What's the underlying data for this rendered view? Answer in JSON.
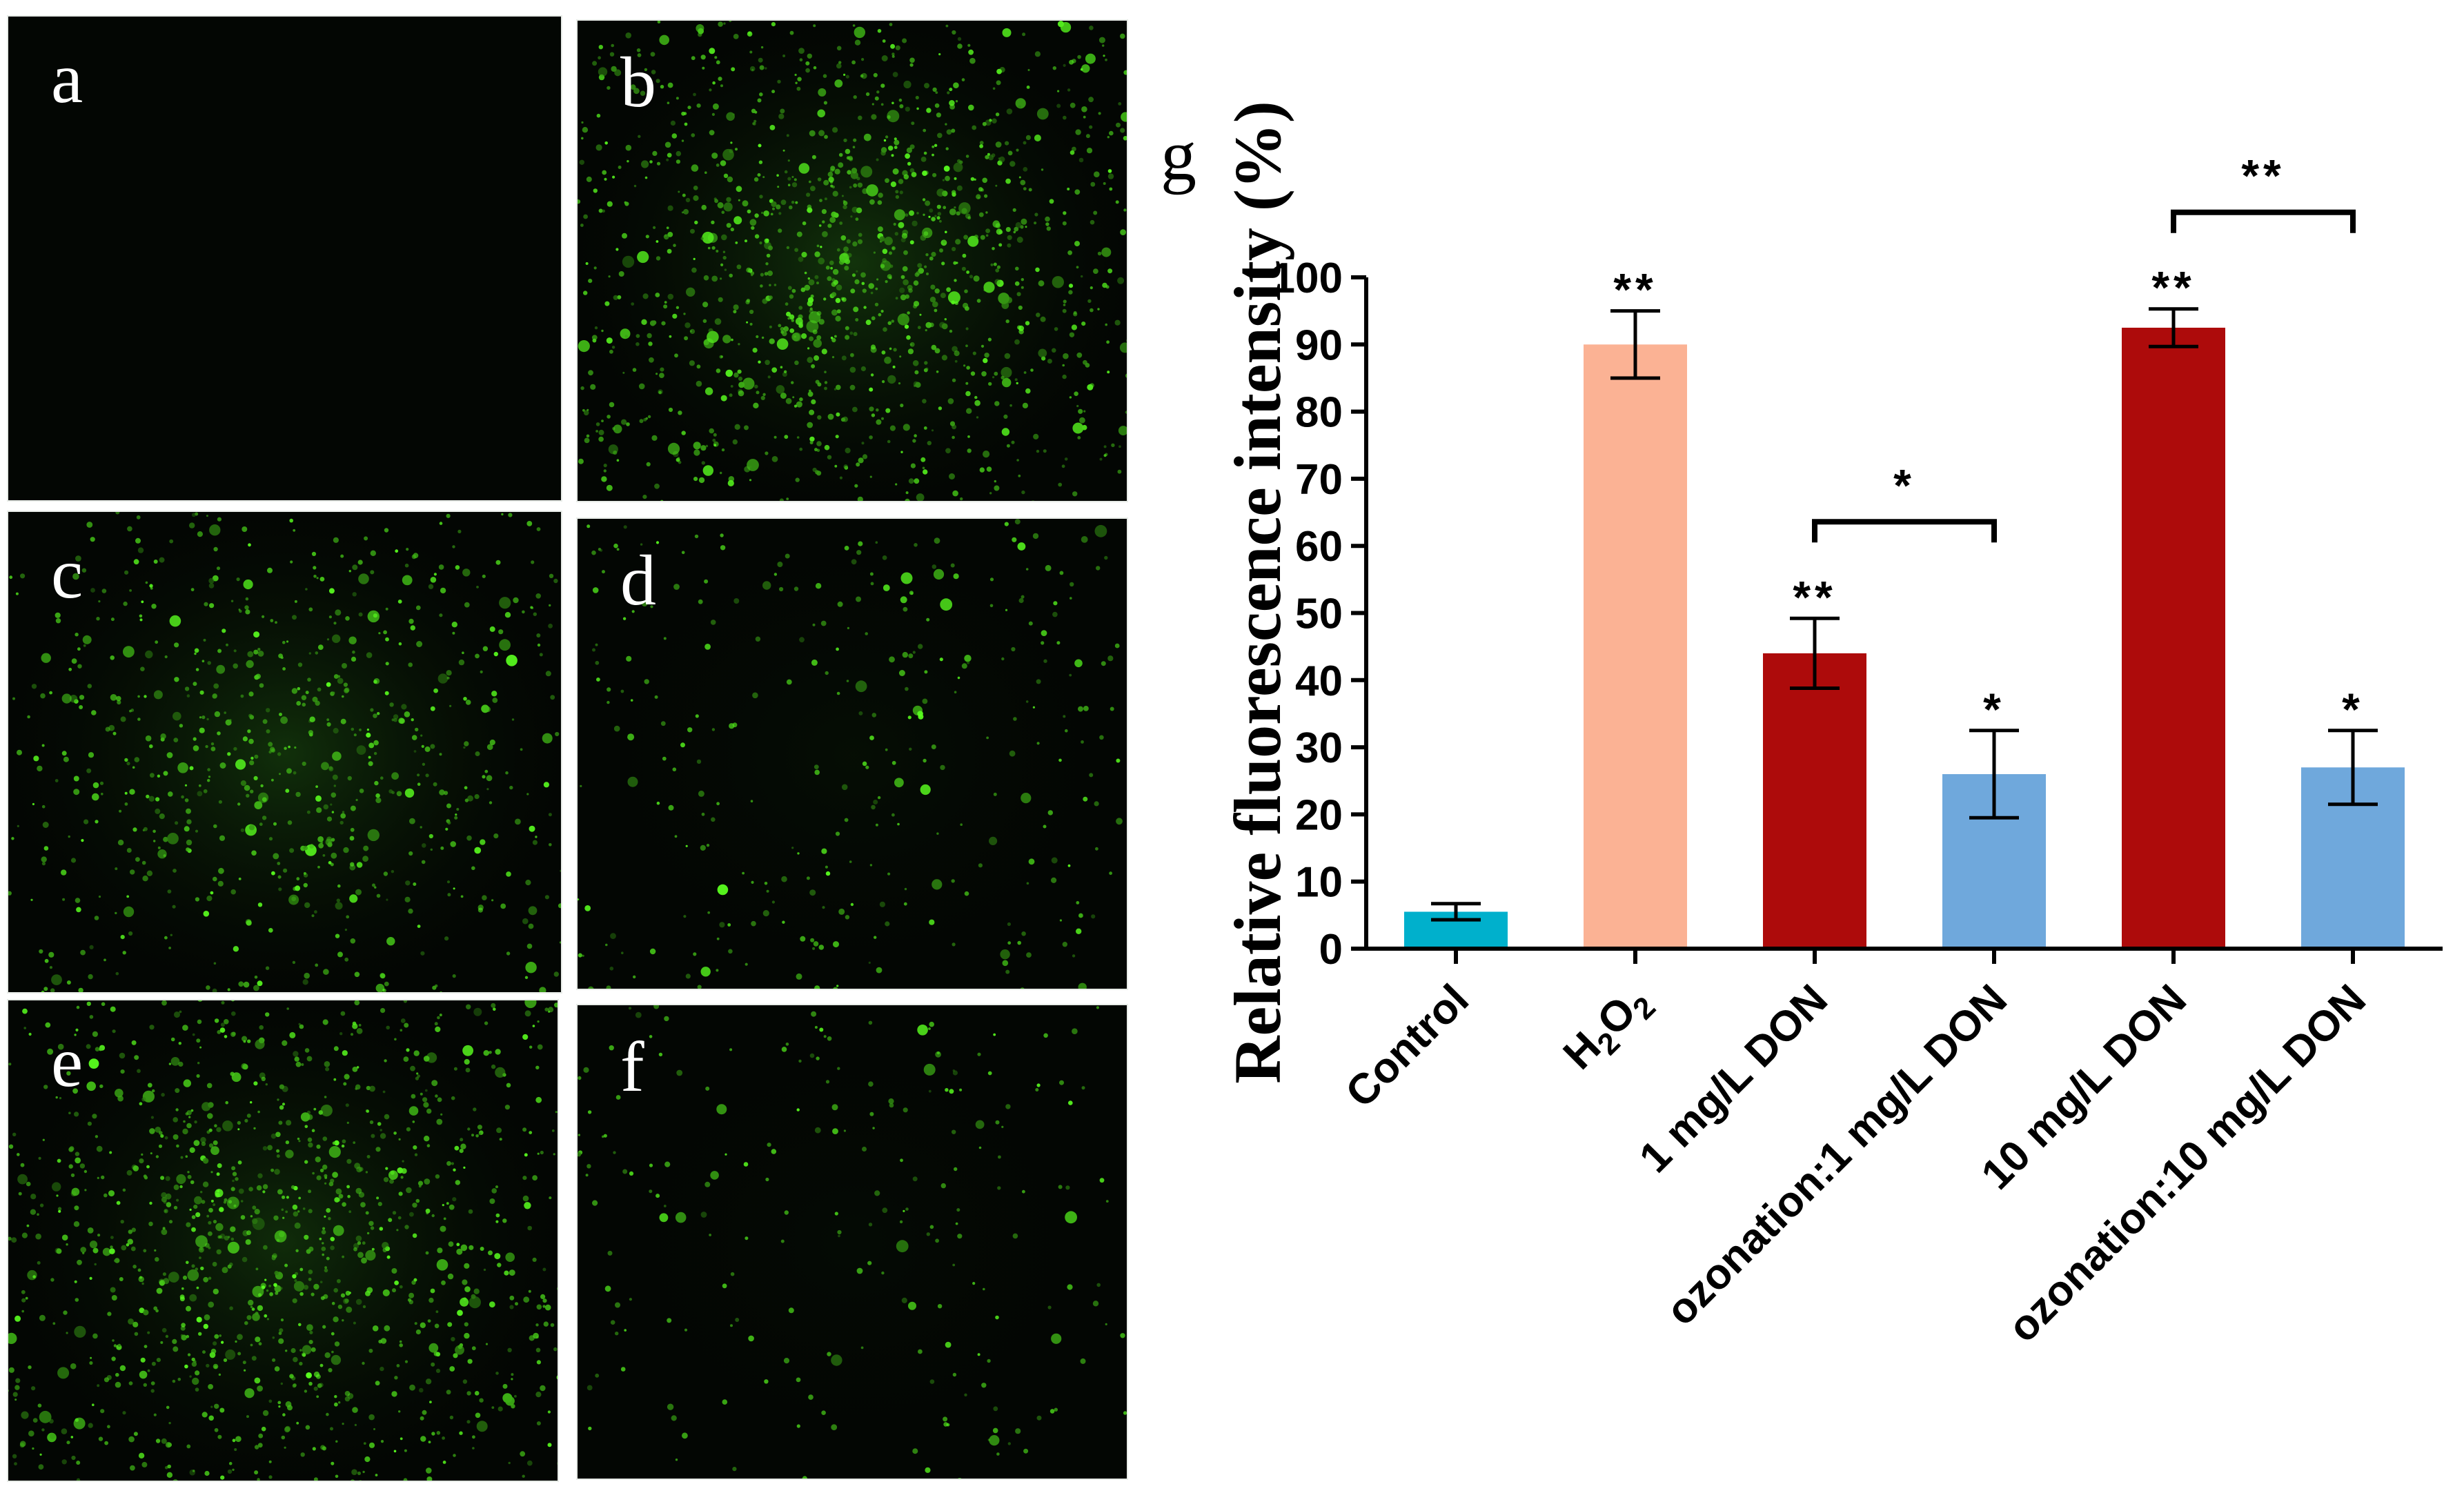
{
  "panels": [
    {
      "label": "a",
      "density": 0.0,
      "cluster": 0.0
    },
    {
      "label": "b",
      "density": 0.95,
      "cluster": 0.6
    },
    {
      "label": "c",
      "density": 0.55,
      "cluster": 0.55
    },
    {
      "label": "d",
      "density": 0.22,
      "cluster": 0.1
    },
    {
      "label": "e",
      "density": 0.85,
      "cluster": 0.5
    },
    {
      "label": "f",
      "density": 0.15,
      "cluster": 0.05
    }
  ],
  "chart_data": {
    "type": "bar",
    "panel_label": "g",
    "ylabel": "Relative fluorescence intensity (%)",
    "xlabel": "",
    "ylim": [
      0,
      100
    ],
    "yticks": [
      0,
      10,
      20,
      30,
      40,
      50,
      60,
      70,
      80,
      90,
      100
    ],
    "categories": [
      "Control",
      "H2O2",
      "1 mg/L DON",
      "ozonation:1 mg/L DON",
      "10 mg/L DON",
      "ozonation:10 mg/L DON"
    ],
    "values": [
      5.5,
      90,
      44,
      26,
      92.5,
      27
    ],
    "errors": [
      1.2,
      5,
      5.2,
      6.5,
      2.8,
      5.5
    ],
    "colors": [
      "#00b0cc",
      "#fbb294",
      "#ad0b0b",
      "#6fa8dc",
      "#ad0b0b",
      "#6fa8dc"
    ],
    "bar_stars": [
      "",
      "**",
      "**",
      "*",
      "**",
      "*"
    ],
    "brackets": [
      {
        "from": 2,
        "to": 3,
        "label": "*"
      },
      {
        "from": 4,
        "to": 5,
        "label": "**"
      }
    ]
  }
}
